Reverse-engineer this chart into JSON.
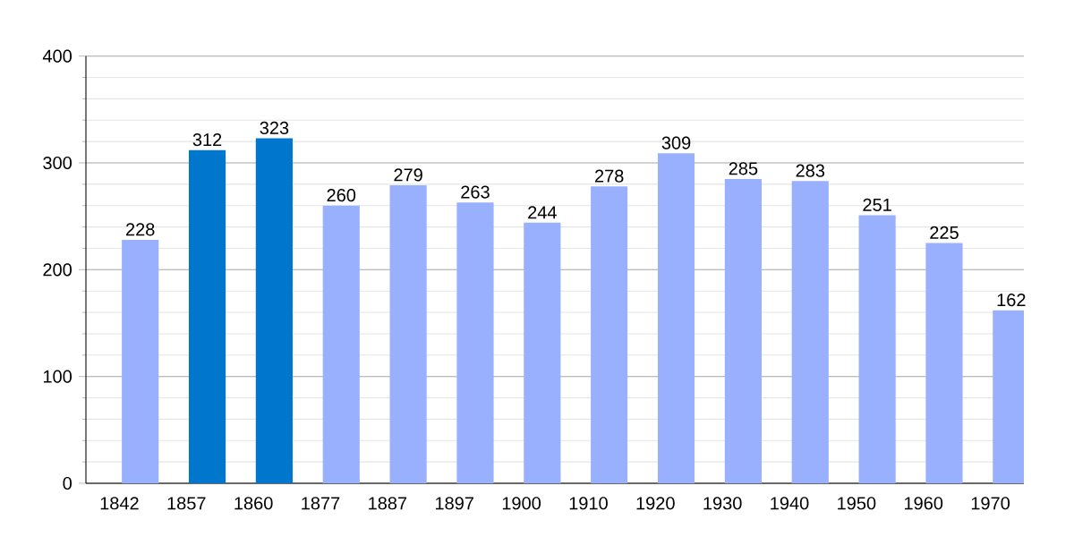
{
  "chart_data": {
    "type": "bar",
    "categories": [
      "1842",
      "1857",
      "1860",
      "1877",
      "1887",
      "1897",
      "1900",
      "1910",
      "1920",
      "1930",
      "1940",
      "1950",
      "1960",
      "1970"
    ],
    "values": [
      228,
      312,
      323,
      260,
      279,
      263,
      244,
      278,
      309,
      285,
      283,
      251,
      225,
      162
    ],
    "colors": [
      "#99b0ff",
      "#0077cc",
      "#0077cc",
      "#99b0ff",
      "#99b0ff",
      "#99b0ff",
      "#99b0ff",
      "#99b0ff",
      "#99b0ff",
      "#99b0ff",
      "#99b0ff",
      "#99b0ff",
      "#99b0ff",
      "#99b0ff"
    ],
    "ylim": [
      0,
      400
    ],
    "yticks": [
      0,
      100,
      200,
      300,
      400
    ],
    "grid": "y",
    "data_labels": true
  }
}
